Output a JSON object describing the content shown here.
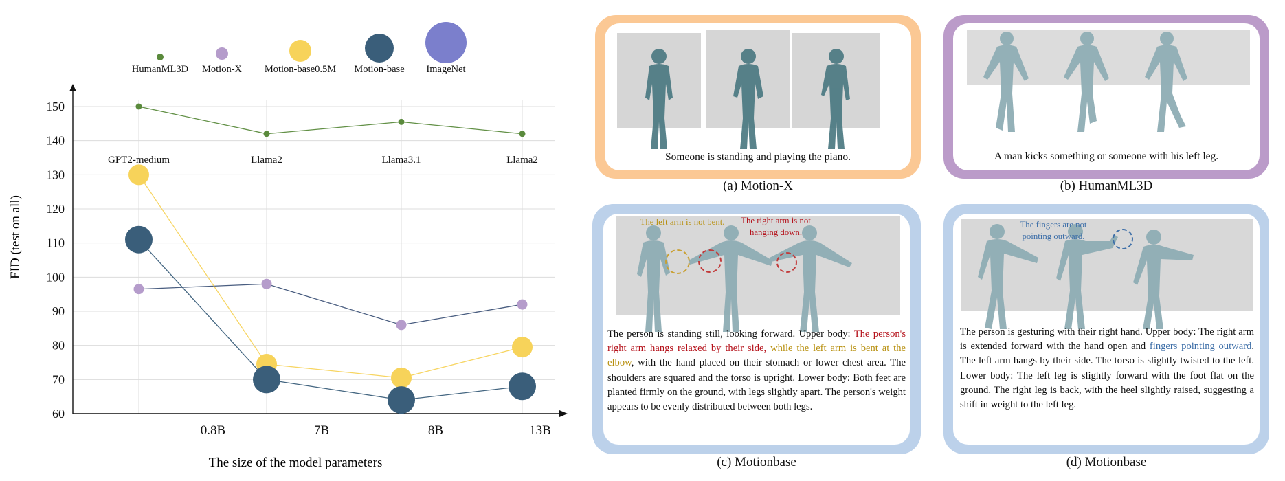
{
  "chart_data": {
    "type": "scatter",
    "ylabel": "FID (test on all)",
    "xlabel": "The size of the model parameters",
    "ylim": [
      60,
      150
    ],
    "yticks": [
      60,
      70,
      80,
      90,
      100,
      110,
      120,
      130,
      140,
      150
    ],
    "x_categories": [
      "0.8B",
      "7B",
      "8B",
      "13B"
    ],
    "model_names": [
      "GPT2-medium",
      "Llama2",
      "Llama3.1",
      "Llama2"
    ],
    "legend_position": "top",
    "legend": [
      {
        "name": "HumanML3D",
        "color": "#5a8a3c"
      },
      {
        "name": "Motion-X",
        "color": "#b59ccb"
      },
      {
        "name": "Motion-base0.5M",
        "color": "#f7d35a"
      },
      {
        "name": "Motion-base",
        "color": "#3a5e7a"
      },
      {
        "name": "ImageNet",
        "color": "#7b7fcc"
      }
    ],
    "series": [
      {
        "name": "HumanML3D",
        "color": "#5a8a3c",
        "line_color": "#5a8a3c",
        "values": [
          150,
          142,
          145.5,
          142
        ]
      },
      {
        "name": "Motion-X",
        "color": "#b59ccb",
        "line_color": "#3f5479",
        "values": [
          96.5,
          98,
          86,
          92
        ]
      },
      {
        "name": "Motion-base0.5M",
        "color": "#f7d35a",
        "line_color": "#f7d35a",
        "values": [
          130,
          74.5,
          70.5,
          79.5
        ]
      },
      {
        "name": "Motion-base",
        "color": "#3a5e7a",
        "line_color": "#3a5e7a",
        "values": [
          111,
          70,
          64,
          68
        ]
      }
    ]
  },
  "panels": {
    "a": {
      "caption": "Someone is standing and playing the piano.",
      "label": "(a) Motion-X",
      "color": "#fbc894"
    },
    "b": {
      "caption": "A man kicks something or someone with his left leg.",
      "label": "(b) HumanML3D",
      "color": "#bb9bc9"
    },
    "c": {
      "label": "(c) Motionbase",
      "color": "#bcd1ea",
      "note_left": "The left arm is not bent.",
      "note_right": "The right arm is not hanging down.",
      "text_1": "The person is standing still, looking forward. Upper body: ",
      "text_red": "The person's right arm hangs relaxed by their side,",
      "text_gold": " while the left arm is bent at the elbow",
      "text_2": ", with the hand placed on their stomach or lower chest area. The shoulders are squared and the torso is upright.  Lower body: Both feet are planted firmly on the ground, with legs slightly apart. The person's weight appears to be evenly distributed between both legs."
    },
    "d": {
      "label": "(d) Motionbase",
      "color": "#bcd1ea",
      "note": "The fingers are not pointing outward.",
      "text_1": "The person is gesturing with their right hand.  Upper body: The right arm is extended forward with the hand open and ",
      "text_blue": "fingers pointing outward",
      "text_2": ". The left arm hangs by their side. The torso is slightly twisted to the left. Lower body: The left leg is slightly forward with the foot flat on the ground. The right leg is back, with the heel slightly raised, suggesting a shift in weight to the left leg."
    }
  }
}
